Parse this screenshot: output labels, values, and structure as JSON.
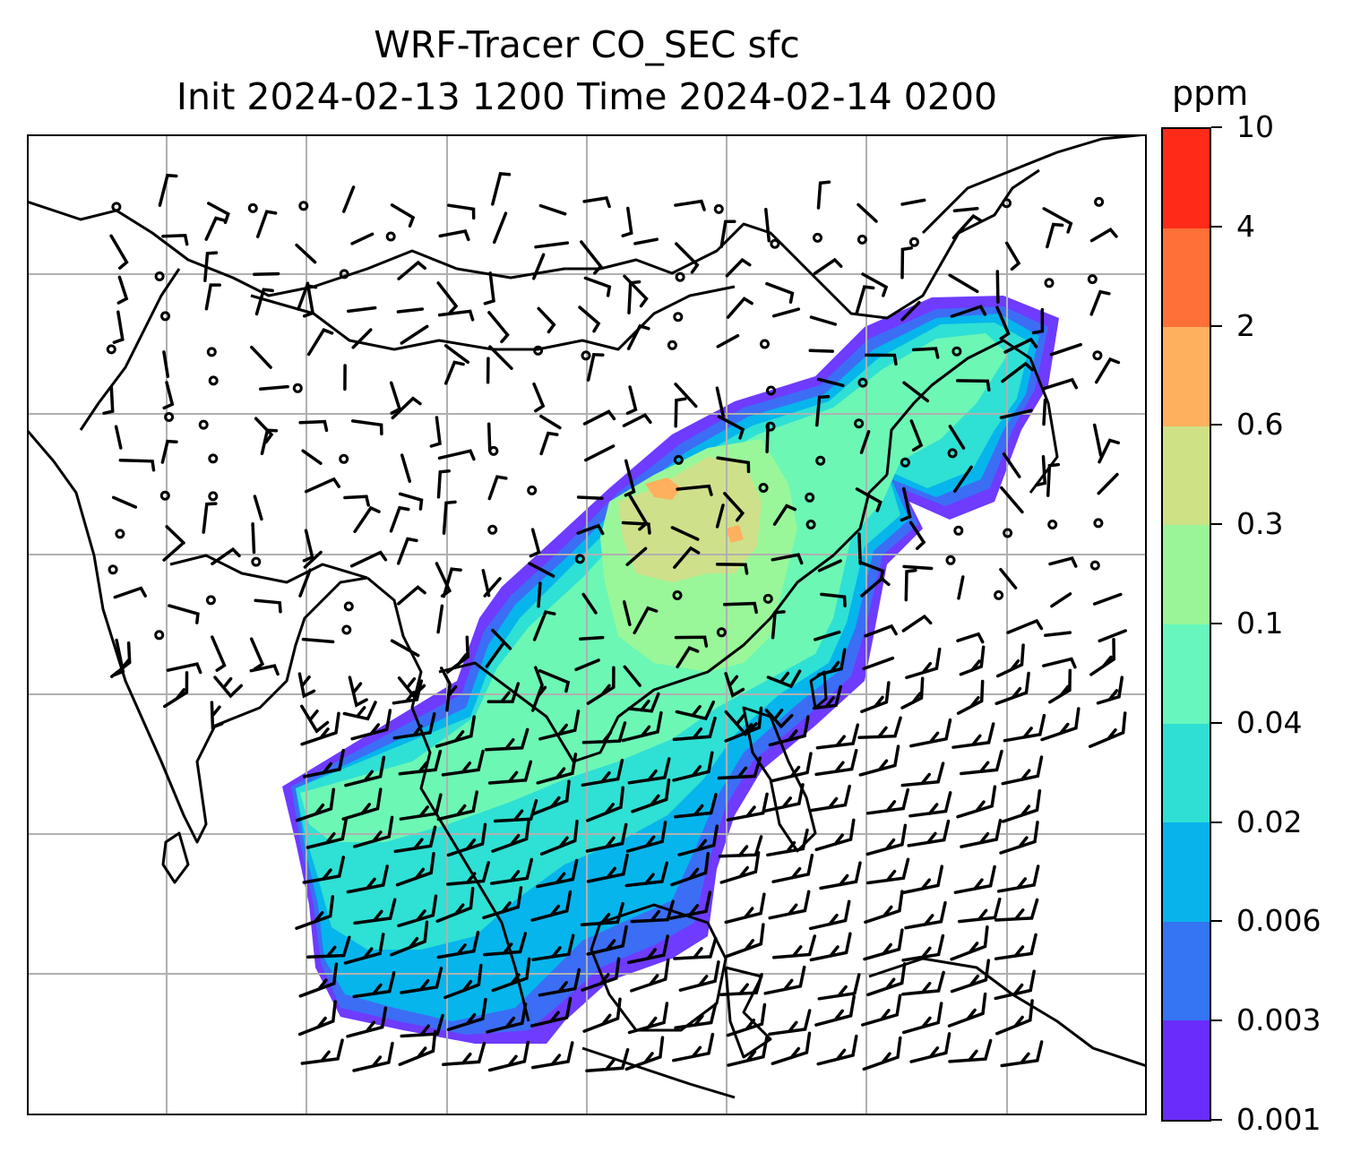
{
  "title": {
    "line1": "WRF-Tracer CO_SEC sfc",
    "line2": "Init 2024-02-13 1200 Time 2024-02-14 0200"
  },
  "map": {
    "field": "CO_SEC surface tracer concentration",
    "overlay": "wind barbs",
    "gridlines": true,
    "grid_color": "#b0b0b0",
    "coastline_color": "#000000",
    "colors": {
      "lavender": "#6e3bff",
      "blue": "#3b6ef5",
      "sky": "#06b5ec",
      "teal": "#2fe0d4",
      "mint": "#6cf7b5",
      "green": "#99f799",
      "khaki": "#cfe08a",
      "salmon": "#ffb05e"
    }
  },
  "colorbar": {
    "unit": "ppm",
    "ticks": [
      "0.001",
      "0.003",
      "0.006",
      "0.02",
      "0.04",
      "0.1",
      "0.3",
      "0.6",
      "2",
      "4",
      "10"
    ],
    "colors": [
      "#6a2cfa",
      "#3574f2",
      "#08b3eb",
      "#2fdfd3",
      "#67f6bd",
      "#99f598",
      "#cfe185",
      "#ffb05e",
      "#ff7038",
      "#ff2a17"
    ]
  }
}
